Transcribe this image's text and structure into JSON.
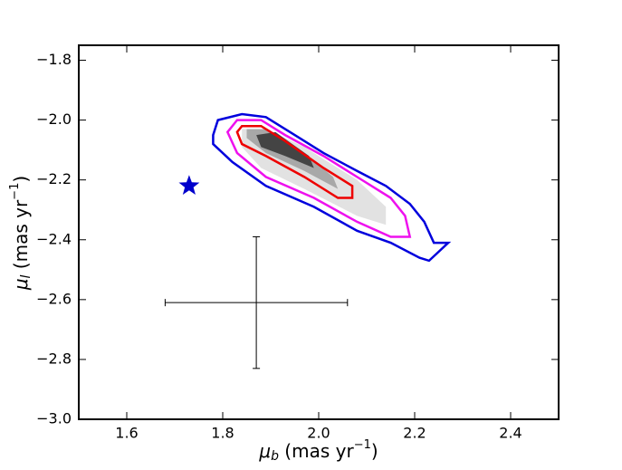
{
  "chart_data": {
    "type": "contour",
    "xlabel": {
      "symbol": "μ",
      "subscript": "b",
      "unit": " (mas yr",
      "exponent": "−1",
      "close": ")"
    },
    "ylabel": {
      "symbol": "μ",
      "subscript": "l",
      "unit": " (mas yr",
      "exponent": "−1",
      "close": ")"
    },
    "xlim": [
      1.5,
      2.5
    ],
    "ylim": [
      -3.0,
      -1.75
    ],
    "xticks": [
      {
        "value": 1.6,
        "label": "1.6"
      },
      {
        "value": 1.8,
        "label": "1.8"
      },
      {
        "value": 2.0,
        "label": "2.0"
      },
      {
        "value": 2.2,
        "label": "2.2"
      },
      {
        "value": 2.4,
        "label": "2.4"
      }
    ],
    "yticks": [
      {
        "value": -3.0,
        "label": "−3.0"
      },
      {
        "value": -2.8,
        "label": "−2.8"
      },
      {
        "value": -2.6,
        "label": "−2.6"
      },
      {
        "value": -2.4,
        "label": "−2.4"
      },
      {
        "value": -2.2,
        "label": "−2.2"
      },
      {
        "value": -2.0,
        "label": "−2.0"
      },
      {
        "value": -1.8,
        "label": "−1.8"
      }
    ],
    "filled_contours": [
      {
        "color": "#e2e2e2",
        "x": [
          1.84,
          1.89,
          1.97,
          2.08,
          2.14,
          2.14,
          2.08,
          1.97,
          1.88,
          1.84
        ],
        "y": [
          -2.03,
          -2.03,
          -2.09,
          -2.2,
          -2.29,
          -2.35,
          -2.32,
          -2.23,
          -2.16,
          -2.09
        ]
      },
      {
        "color": "#a8a8a8",
        "x": [
          1.85,
          1.89,
          1.97,
          2.03,
          2.04,
          1.97,
          1.89,
          1.85
        ],
        "y": [
          -2.03,
          -2.03,
          -2.11,
          -2.19,
          -2.23,
          -2.17,
          -2.11,
          -2.06
        ]
      },
      {
        "color": "#444444",
        "x": [
          1.87,
          1.91,
          1.98,
          1.99,
          1.93,
          1.88
        ],
        "y": [
          -2.05,
          -2.04,
          -2.12,
          -2.16,
          -2.12,
          -2.09
        ]
      }
    ],
    "series": [
      {
        "color": "#0000dd",
        "x": [
          1.78,
          1.79,
          1.84,
          1.89,
          1.95,
          2.01,
          2.08,
          2.14,
          2.19,
          2.22,
          2.24,
          2.27,
          2.25,
          2.23,
          2.21,
          2.15,
          2.08,
          1.99,
          1.89,
          1.82,
          1.78
        ],
        "y": [
          -2.05,
          -2.0,
          -1.98,
          -1.99,
          -2.05,
          -2.11,
          -2.17,
          -2.22,
          -2.28,
          -2.34,
          -2.41,
          -2.41,
          -2.44,
          -2.47,
          -2.46,
          -2.41,
          -2.37,
          -2.29,
          -2.22,
          -2.14,
          -2.08
        ]
      },
      {
        "color": "#ee11ee",
        "x": [
          1.81,
          1.83,
          1.88,
          1.93,
          2.01,
          2.08,
          2.15,
          2.18,
          2.19,
          2.15,
          2.08,
          1.99,
          1.89,
          1.83
        ],
        "y": [
          -2.04,
          -2.0,
          -2.0,
          -2.05,
          -2.12,
          -2.19,
          -2.26,
          -2.32,
          -2.39,
          -2.39,
          -2.34,
          -2.26,
          -2.19,
          -2.11
        ]
      },
      {
        "color": "#ee0000",
        "x": [
          1.83,
          1.84,
          1.88,
          1.93,
          2.01,
          2.07,
          2.07,
          2.04,
          1.97,
          1.89,
          1.84
        ],
        "y": [
          -2.04,
          -2.02,
          -2.02,
          -2.07,
          -2.16,
          -2.22,
          -2.26,
          -2.26,
          -2.19,
          -2.12,
          -2.08
        ]
      }
    ],
    "marker": {
      "x": 1.73,
      "y": -2.22,
      "color": "#0000cc"
    },
    "errorbar": {
      "x": 1.87,
      "y": -2.61,
      "xerr": 0.19,
      "yerr": 0.22,
      "color": "#000000"
    }
  }
}
